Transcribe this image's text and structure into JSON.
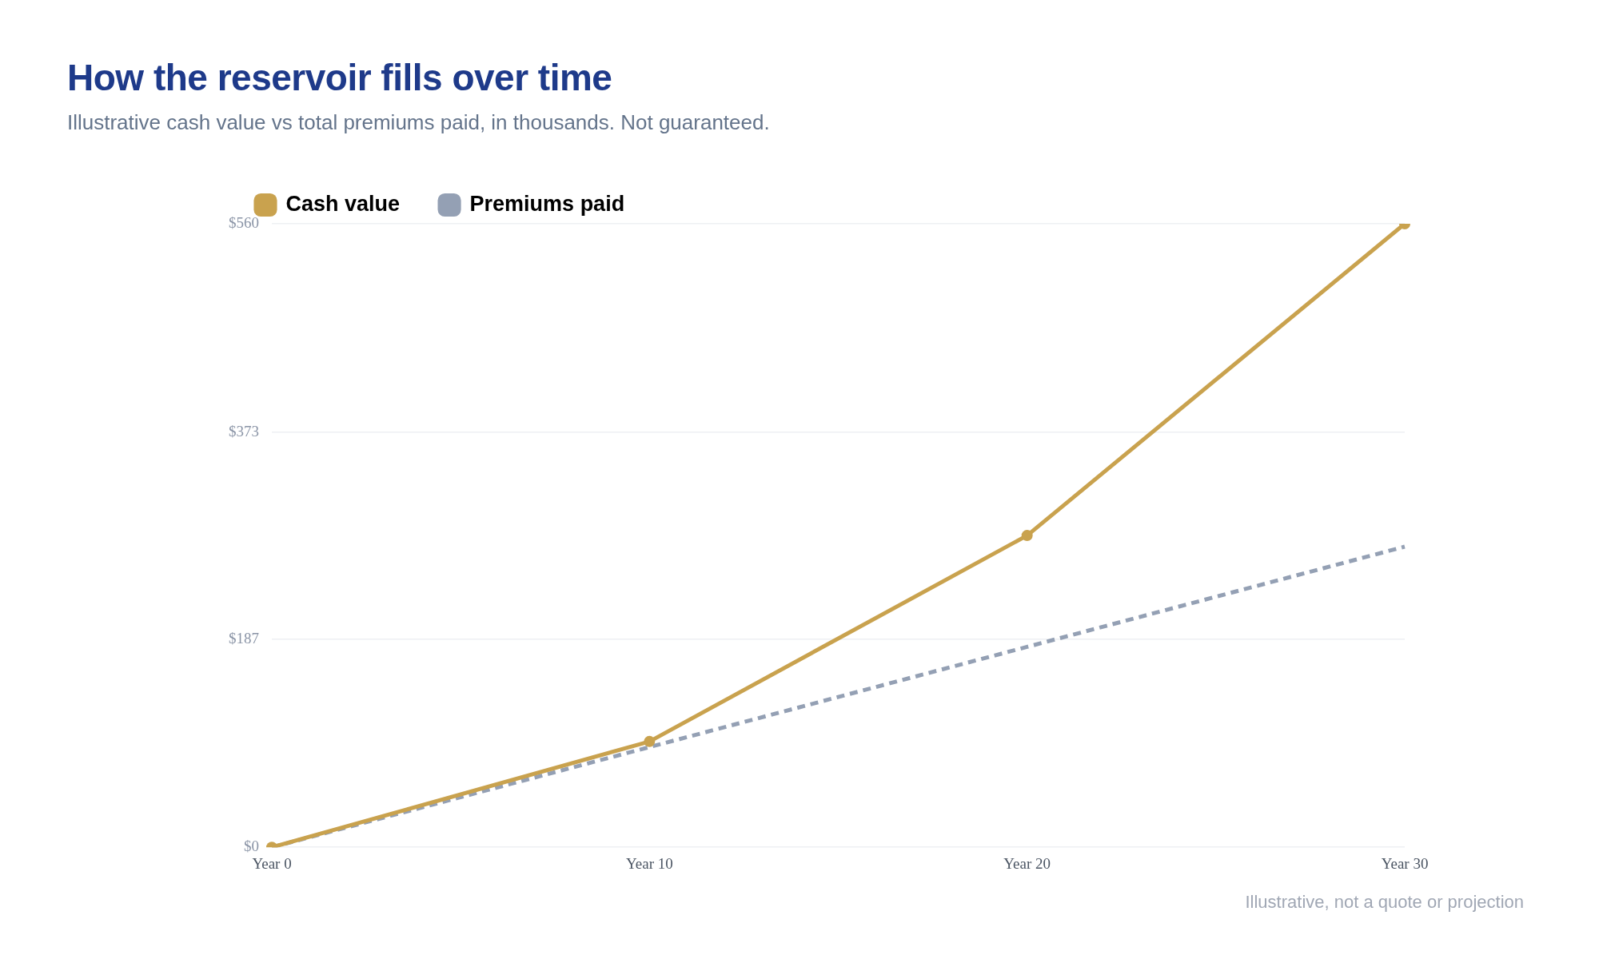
{
  "chart_data": {
    "type": "line",
    "title": "How the reservoir fills over time",
    "subtitle": "Illustrative cash value vs total premiums paid, in thousands. Not guaranteed.",
    "categories": [
      "Year 0",
      "Year 10",
      "Year 20",
      "Year 30"
    ],
    "series": [
      {
        "name": "Cash value",
        "color": "#c9a24e",
        "values": [
          0,
          95,
          280,
          560
        ],
        "line_style": "solid",
        "marker": "circle"
      },
      {
        "name": "Premiums paid",
        "color": "#94a0b4",
        "values": [
          0,
          90,
          180,
          270
        ],
        "line_style": "dashed",
        "marker": "none"
      }
    ],
    "ylim": [
      0,
      560
    ],
    "yticks": [
      {
        "value": 0,
        "label": "$0"
      },
      {
        "value": 187,
        "label": "$187"
      },
      {
        "value": 373,
        "label": "$373"
      },
      {
        "value": 560,
        "label": "$560"
      }
    ],
    "grid": "y",
    "legend": "top left",
    "annotations": [
      "Illustrative, not a quote or projection"
    ]
  }
}
